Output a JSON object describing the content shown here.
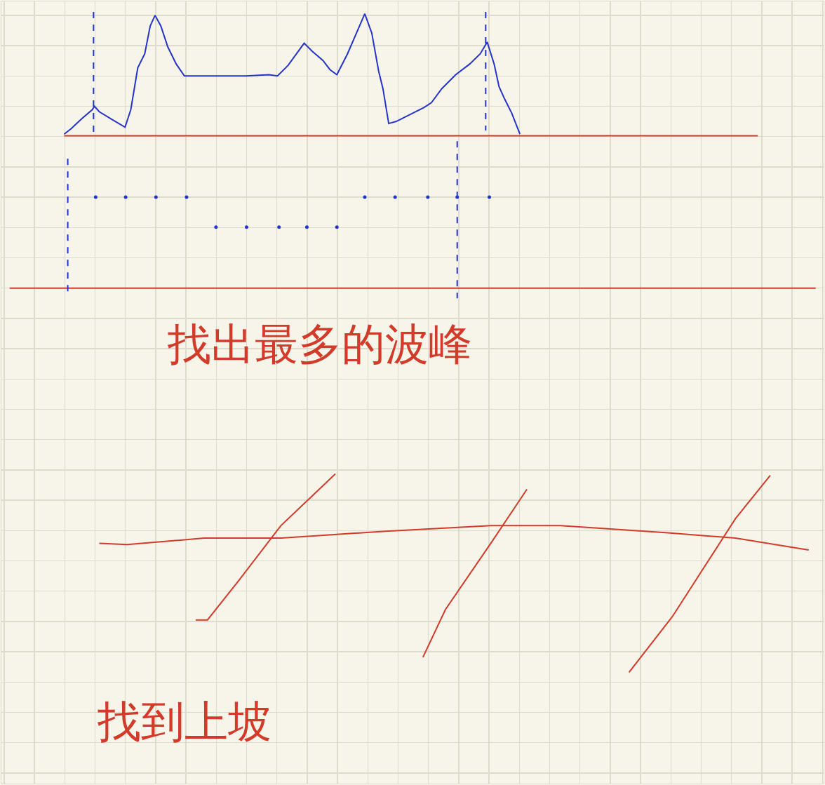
{
  "chart_data": {
    "type": "line",
    "grid": true,
    "tick_labels": false,
    "xlim": [
      -0.09,
      27.04
    ],
    "ylim": [
      -0.35,
      25.46
    ],
    "xticks": [
      0,
      1,
      2,
      3,
      4,
      5,
      6,
      7,
      8,
      9,
      10,
      11,
      12,
      13,
      14,
      15,
      16,
      17,
      18,
      19,
      20,
      21,
      22,
      23,
      24,
      25,
      26,
      27
    ],
    "yticks": [
      0,
      1,
      2,
      3,
      4,
      5,
      6,
      7,
      8,
      9,
      10,
      11,
      12,
      13,
      14,
      15,
      16,
      17,
      18,
      19,
      20,
      21,
      22,
      23,
      24,
      25
    ],
    "series": [
      {
        "color": "#2433c9",
        "line_style": "solid",
        "x": [
          1.98,
          2.21,
          2.56,
          2.91,
          2.98,
          3.14,
          3.6,
          3.99,
          4.18,
          4.41,
          4.64,
          4.82,
          4.98,
          5.17,
          5.4,
          5.68,
          5.95,
          6.99,
          7.98,
          8.74,
          9.02,
          9.37,
          9.71,
          9.9,
          10.17,
          10.52,
          10.75,
          10.98,
          11.33,
          11.67,
          11.9,
          12.13,
          12.36,
          12.5,
          12.69,
          12.94,
          13.4,
          13.86,
          14.1,
          14.44,
          14.9,
          15.36,
          15.71,
          15.94,
          16.17,
          16.33,
          16.52,
          16.75,
          17.02
        ],
        "values": [
          21.08,
          21.26,
          21.59,
          21.89,
          22.0,
          21.82,
          21.54,
          21.31,
          21.89,
          23.27,
          23.73,
          24.65,
          25.0,
          24.65,
          23.96,
          23.39,
          23.0,
          23.0,
          23.0,
          23.04,
          23.0,
          23.35,
          23.81,
          24.08,
          23.81,
          23.51,
          23.21,
          23.04,
          23.73,
          24.54,
          25.05,
          24.42,
          23.15,
          22.58,
          21.43,
          21.5,
          21.73,
          21.96,
          22.12,
          22.58,
          23.04,
          23.39,
          23.73,
          24.12,
          23.39,
          22.65,
          22.23,
          21.77,
          21.08
        ]
      },
      {
        "color": "#d23a2a",
        "line_style": "solid",
        "x": [
          1.98,
          24.87
        ],
        "values": [
          21.03,
          21.03
        ]
      },
      {
        "color": "#d23a2a",
        "line_style": "solid",
        "x": [
          0.18,
          26.78
        ],
        "values": [
          16.0,
          16.0
        ]
      },
      {
        "color": "#2433c9",
        "line_style": "dashed",
        "x": [
          2.95,
          2.95
        ],
        "values": [
          25.11,
          21.08
        ]
      },
      {
        "color": "#2433c9",
        "line_style": "dashed",
        "x": [
          15.89,
          15.89
        ],
        "values": [
          25.11,
          21.2
        ]
      },
      {
        "color": "#2433c9",
        "line_style": "dashed",
        "x": [
          2.1,
          2.1
        ],
        "values": [
          20.27,
          15.77
        ]
      },
      {
        "color": "#2433c9",
        "line_style": "dashed",
        "x": [
          14.95,
          14.95
        ],
        "values": [
          20.85,
          15.66
        ]
      },
      {
        "color": "#2433c9",
        "type": "scatter",
        "marker": "circle",
        "x": [
          3.02,
          4.01,
          5.01,
          6.02,
          11.9,
          12.9,
          13.98,
          14.95,
          16.01
        ],
        "values": [
          19.0,
          19.0,
          19.0,
          19.0,
          19.0,
          19.0,
          19.0,
          19.0,
          19.0
        ]
      },
      {
        "color": "#2433c9",
        "type": "scatter",
        "marker": "circle",
        "x": [
          6.99,
          8.0,
          9.07,
          9.99,
          10.98
        ],
        "values": [
          18.01,
          18.01,
          18.01,
          18.01,
          18.01
        ]
      },
      {
        "color": "#d23a2a",
        "line_style": "solid",
        "x": [
          3.14,
          4.06,
          6.6,
          9.13,
          12.6,
          16.06,
          18.36,
          21.82,
          24.13,
          26.55
        ],
        "values": [
          7.58,
          7.54,
          7.75,
          7.75,
          7.98,
          8.16,
          8.16,
          7.93,
          7.75,
          7.36
        ]
      },
      {
        "color": "#d23a2a",
        "line_style": "solid",
        "x": [
          6.32,
          6.71,
          7.75,
          9.13,
          10.06,
          10.93
        ],
        "values": [
          5.05,
          5.05,
          6.36,
          8.16,
          9.04,
          9.87
        ]
      },
      {
        "color": "#d23a2a",
        "line_style": "solid",
        "x": [
          13.82,
          14.56,
          16.06,
          17.25
        ],
        "values": [
          3.82,
          5.39,
          7.58,
          9.36
        ]
      },
      {
        "color": "#d23a2a",
        "line_style": "solid",
        "x": [
          20.62,
          22.05,
          24.13,
          25.28
        ],
        "values": [
          3.32,
          5.16,
          8.39,
          9.82
        ]
      }
    ],
    "annotations": [
      {
        "text": "找出最多的波峰",
        "x": 10.4,
        "y": 14.16,
        "color": "#d23a2a"
      },
      {
        "text": "找到上坡",
        "x": 5.95,
        "y": 1.7,
        "color": "#d23a2a"
      }
    ]
  }
}
